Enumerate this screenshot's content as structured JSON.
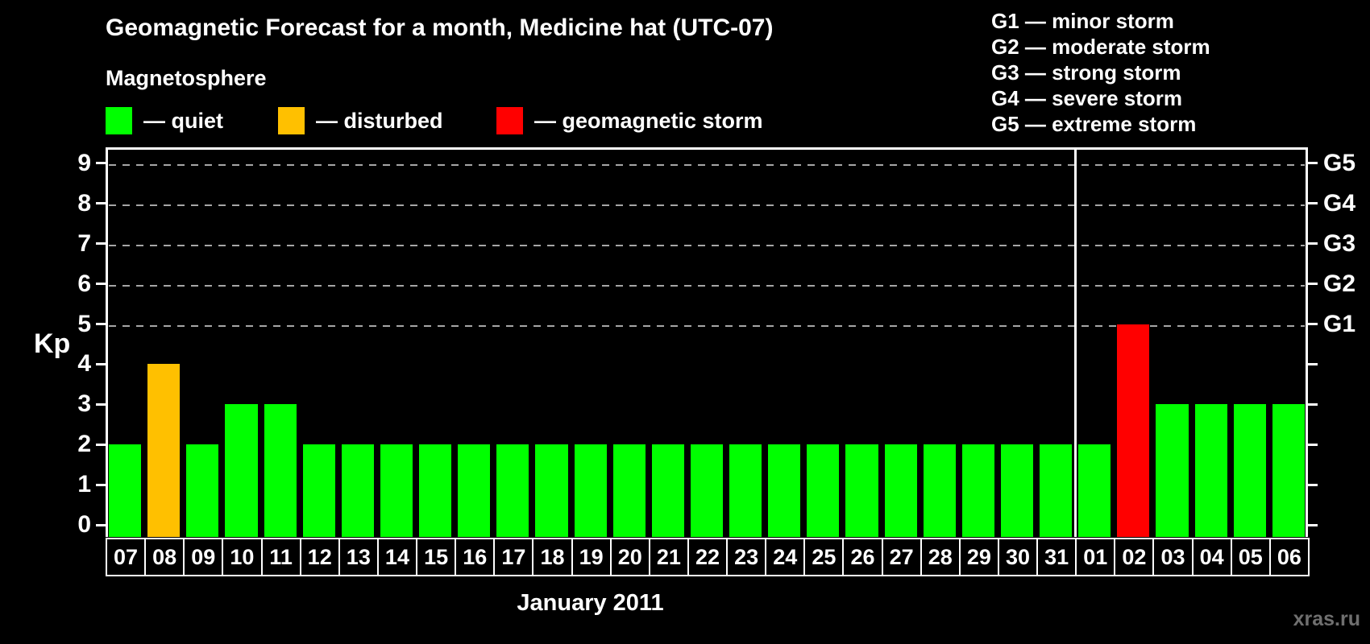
{
  "header": {
    "title": "Geomagnetic Forecast for a month, Medicine hat (UTC-07)",
    "subtitle": "Magnetosphere"
  },
  "legend": {
    "items": [
      {
        "name": "quiet",
        "label": "— quiet",
        "color": "#00ff00"
      },
      {
        "name": "disturbed",
        "label": "— disturbed",
        "color": "#ffc000"
      },
      {
        "name": "storm",
        "label": "— geomagnetic storm",
        "color": "#ff0000"
      }
    ]
  },
  "g_legend": {
    "items": [
      "G1 — minor storm",
      "G2 — moderate storm",
      "G3 — strong storm",
      "G4 — severe storm",
      "G5 — extreme storm"
    ]
  },
  "axes": {
    "y_label": "Kp",
    "x_label": "January 2011",
    "y_ticks": [
      "0",
      "1",
      "2",
      "3",
      "4",
      "5",
      "6",
      "7",
      "8",
      "9"
    ]
  },
  "footer": {
    "watermark": "xras.ru"
  },
  "chart_data": {
    "type": "bar",
    "title": "Geomagnetic Forecast for a month, Medicine hat (UTC-07)",
    "xlabel": "January 2011",
    "ylabel": "Kp",
    "ylim": [
      0,
      9
    ],
    "grid": "dashed horizontal lines at Kp 5-9 only",
    "legend_position": "top",
    "categories": [
      "07",
      "08",
      "09",
      "10",
      "11",
      "12",
      "13",
      "14",
      "15",
      "16",
      "17",
      "18",
      "19",
      "20",
      "21",
      "22",
      "23",
      "24",
      "25",
      "26",
      "27",
      "28",
      "29",
      "30",
      "31",
      "01",
      "02",
      "03",
      "04",
      "05",
      "06"
    ],
    "values": [
      2,
      4,
      2,
      3,
      3,
      2,
      2,
      2,
      2,
      2,
      2,
      2,
      2,
      2,
      2,
      2,
      2,
      2,
      2,
      2,
      2,
      2,
      2,
      2,
      2,
      2,
      5,
      3,
      3,
      3,
      3
    ],
    "statuses": [
      "quiet",
      "disturbed",
      "quiet",
      "quiet",
      "quiet",
      "quiet",
      "quiet",
      "quiet",
      "quiet",
      "quiet",
      "quiet",
      "quiet",
      "quiet",
      "quiet",
      "quiet",
      "quiet",
      "quiet",
      "quiet",
      "quiet",
      "quiet",
      "quiet",
      "quiet",
      "quiet",
      "quiet",
      "quiet",
      "quiet",
      "storm",
      "quiet",
      "quiet",
      "quiet",
      "quiet"
    ],
    "colors": {
      "quiet": "#00ff00",
      "disturbed": "#ffc000",
      "storm": "#ff0000"
    },
    "gridline_values": [
      5,
      6,
      7,
      8,
      9
    ],
    "right_axis_labels": [
      "G1",
      "G2",
      "G3",
      "G4",
      "G5"
    ],
    "month_separator_after_index": 24
  }
}
